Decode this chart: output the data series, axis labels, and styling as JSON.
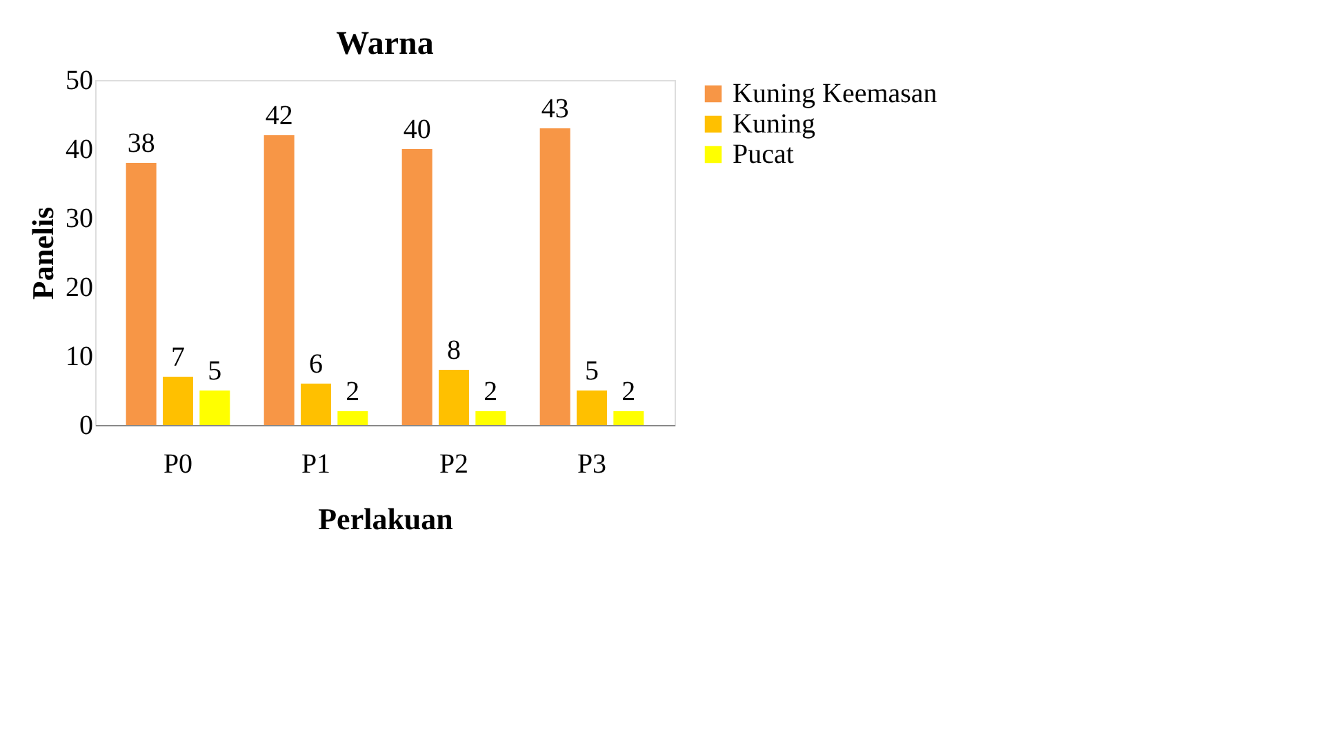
{
  "chart_data": {
    "type": "bar",
    "title": "Warna",
    "xlabel": "Perlakuan",
    "ylabel": "Panelis",
    "categories": [
      "P0",
      "P1",
      "P2",
      "P3"
    ],
    "series": [
      {
        "name": "Kuning Keemasan",
        "color": "#f79646",
        "values": [
          38,
          42,
          40,
          43
        ]
      },
      {
        "name": "Kuning",
        "color": "#ffc000",
        "values": [
          7,
          6,
          8,
          5
        ]
      },
      {
        "name": "Pucat",
        "color": "#ffff00",
        "values": [
          5,
          2,
          2,
          2
        ]
      }
    ],
    "ylim": [
      0,
      50
    ],
    "yticks": [
      0,
      10,
      20,
      30,
      40,
      50
    ],
    "grid": false,
    "legend": "right",
    "data_labels": true
  }
}
